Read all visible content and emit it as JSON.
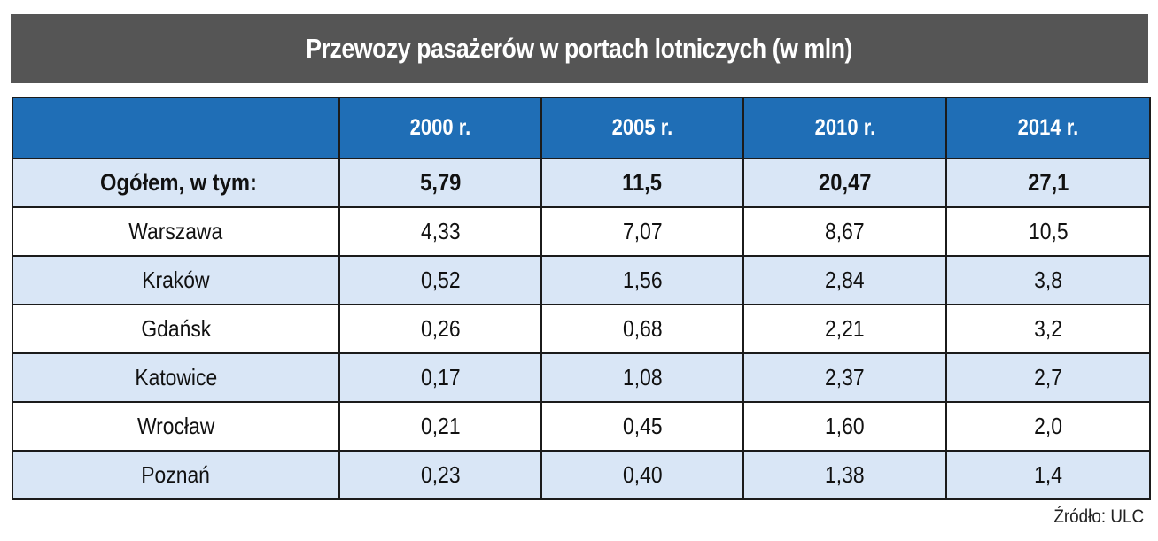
{
  "title": "Przewozy pasażerów w portach lotniczych (w mln)",
  "source": "Źródło: ULC",
  "colors": {
    "title_bg": "#555555",
    "header_bg": "#1f6eb6",
    "row_shade": "#d9e6f6",
    "row_plain": "#ffffff",
    "border": "#1b1b1b"
  },
  "chart_data": {
    "type": "table",
    "title": "Przewozy pasażerów w portach lotniczych (w mln)",
    "columns": [
      "",
      "2000 r.",
      "2005 r.",
      "2010 r.",
      "2014 r."
    ],
    "rows": [
      {
        "label": "Ogółem, w tym:",
        "values": [
          "5,79",
          "11,5",
          "20,47",
          "27,1"
        ],
        "bold": true
      },
      {
        "label": "Warszawa",
        "values": [
          "4,33",
          "7,07",
          "8,67",
          "10,5"
        ]
      },
      {
        "label": "Kraków",
        "values": [
          "0,52",
          "1,56",
          "2,84",
          "3,8"
        ]
      },
      {
        "label": "Gdańsk",
        "values": [
          "0,26",
          "0,68",
          "2,21",
          "3,2"
        ]
      },
      {
        "label": "Katowice",
        "values": [
          "0,17",
          "1,08",
          "2,37",
          "2,7"
        ]
      },
      {
        "label": "Wrocław",
        "values": [
          "0,21",
          "0,45",
          "1,60",
          "2,0"
        ]
      },
      {
        "label": "Poznań",
        "values": [
          "0,23",
          "0,40",
          "1,38",
          "1,4"
        ]
      }
    ],
    "source": "Źródło: ULC"
  }
}
